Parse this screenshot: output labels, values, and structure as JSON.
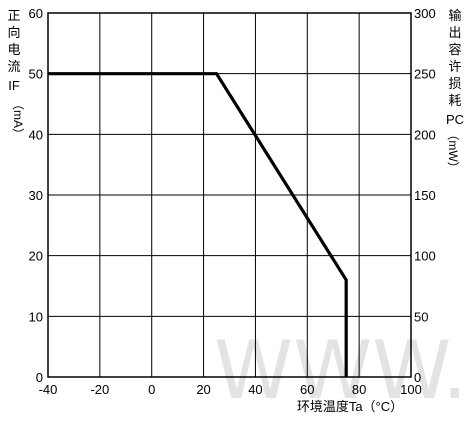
{
  "chart_data": {
    "type": "line",
    "xlabel": "环境温度Ta（°C）",
    "ylabel_left_chars": [
      "正",
      "向",
      "电",
      "流"
    ],
    "ylabel_left_symbol": "IF",
    "ylabel_left_unit": "（mA）",
    "ylabel_right_chars": [
      "输",
      "出",
      "容",
      "许",
      "损",
      "耗"
    ],
    "ylabel_right_symbol": "PC",
    "ylabel_right_unit": "（mW）",
    "x_ticks": [
      "-40",
      "-20",
      "0",
      "20",
      "40",
      "60",
      "80",
      "100"
    ],
    "y_left_ticks": [
      "0",
      "10",
      "20",
      "30",
      "40",
      "50",
      "60"
    ],
    "y_right_ticks": [
      "0",
      "50",
      "100",
      "150",
      "200",
      "250",
      "300"
    ],
    "xlim": [
      -40,
      100
    ],
    "ylim_left": [
      0,
      60
    ],
    "ylim_right": [
      0,
      300
    ],
    "grid": true,
    "series": [
      {
        "x": [
          -40,
          25,
          75,
          75
        ],
        "y": [
          50,
          50,
          16,
          0
        ]
      }
    ],
    "watermark": "WWW.WC"
  }
}
